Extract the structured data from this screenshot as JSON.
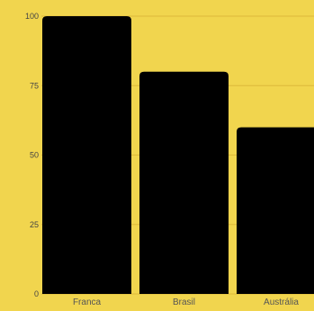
{
  "colors": {
    "background": "#f1d54e",
    "bar": "#000000",
    "grid": "#ddb93a",
    "axis_text": "#555555",
    "tick_text": "#444444"
  },
  "chart_data": {
    "type": "bar",
    "categories": [
      "Franca",
      "Brasil",
      "Austrália"
    ],
    "values": [
      100,
      80,
      60
    ],
    "yticks": [
      0,
      25,
      50,
      75,
      100
    ],
    "ylim": [
      0,
      100
    ],
    "grid": true,
    "legend": "none",
    "title": "",
    "xlabel": "",
    "ylabel": ""
  }
}
